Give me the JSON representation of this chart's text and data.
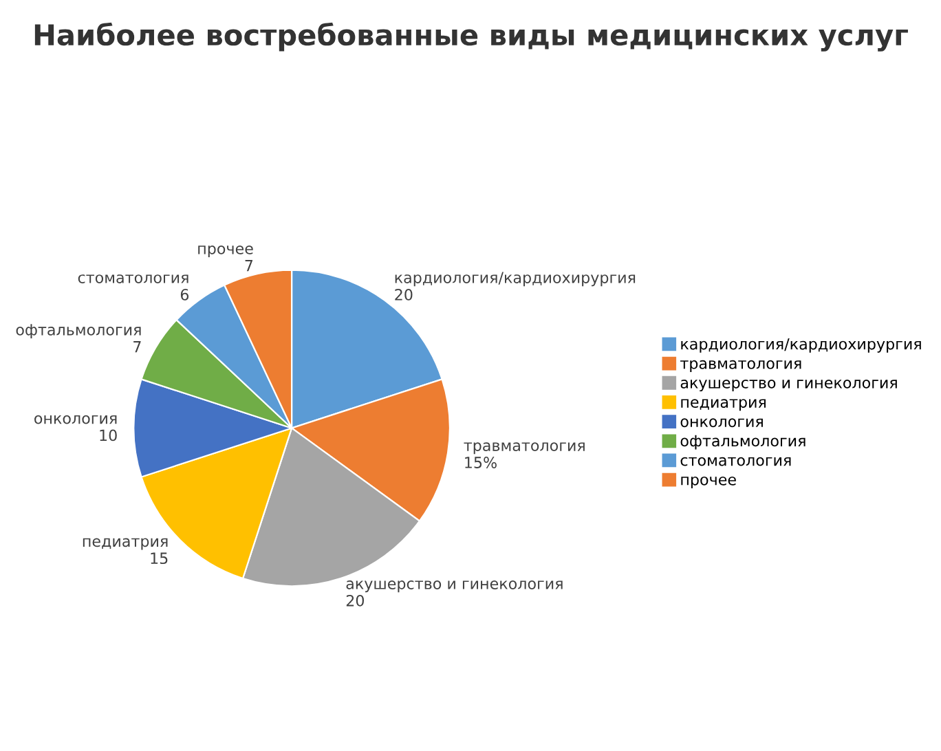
{
  "chart_data": {
    "type": "pie",
    "title": "Наиболее востребованные виды медицинских услуг",
    "categories": [
      "кардиология/кардиохирургия",
      "травматология",
      "акушерство и гинекология",
      "педиатрия",
      "онкология",
      "офтальмология",
      "стоматология",
      "прочее"
    ],
    "values": [
      20,
      15,
      20,
      15,
      10,
      7,
      6,
      7
    ],
    "value_labels": [
      "20",
      "15%",
      "20",
      "15",
      "10",
      "7",
      "6",
      "7"
    ],
    "colors": [
      "#5b9bd5",
      "#ed7d31",
      "#a5a5a5",
      "#ffc000",
      "#4472c4",
      "#70ad47",
      "#5b9bd5",
      "#ed7d31"
    ],
    "legend": "right"
  }
}
